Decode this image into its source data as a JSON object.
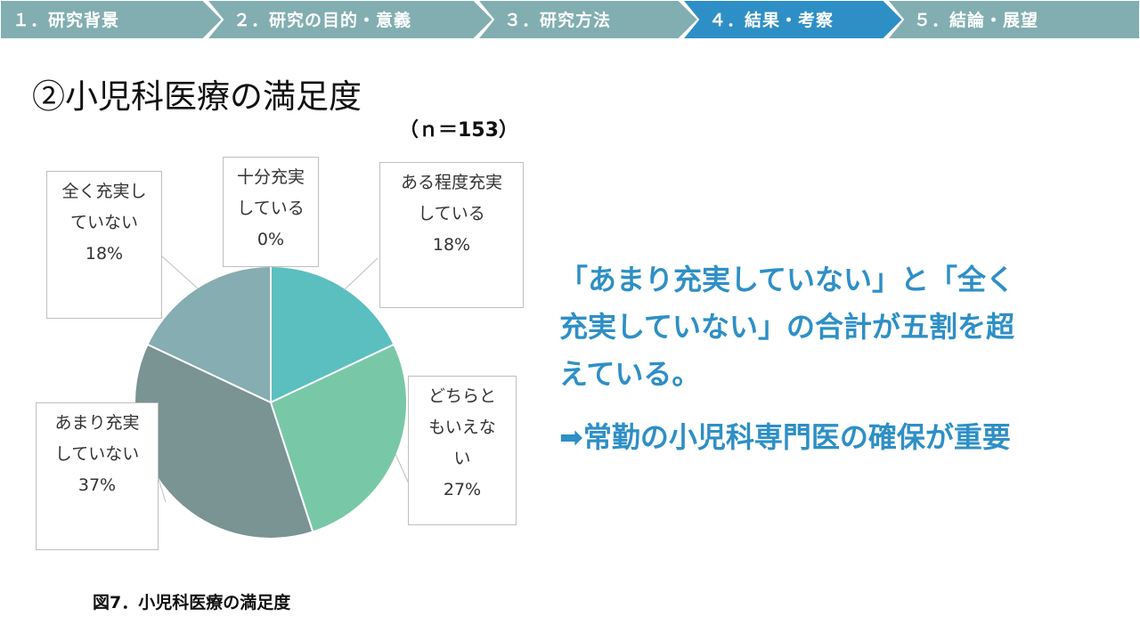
{
  "nav": {
    "steps": [
      {
        "label": "１．研究背景",
        "active": false
      },
      {
        "label": "２．研究の目的・意義",
        "active": false
      },
      {
        "label": "３．研究方法",
        "active": false
      },
      {
        "label": "４．結果・考察",
        "active": true
      },
      {
        "label": "５．結論・展望",
        "active": false
      }
    ],
    "colors": {
      "inactive": "#82aeb1",
      "active": "#2e8fc6"
    }
  },
  "slide_title": "②小児科医療の満足度",
  "sample_size": "（ｎ＝153）",
  "chart_data": {
    "type": "pie",
    "title": "",
    "slices": [
      {
        "label_lines": [
          "十分充実",
          "している"
        ],
        "value": 0,
        "percent_label": "0%",
        "color": "#5bbfbf"
      },
      {
        "label_lines": [
          "ある程度充実",
          "している"
        ],
        "value": 18,
        "percent_label": "18%",
        "color": "#5bbfbf"
      },
      {
        "label_lines": [
          "どちらと",
          "もいえな",
          "い"
        ],
        "value": 27,
        "percent_label": "27%",
        "color": "#78c8a8"
      },
      {
        "label_lines": [
          "あまり充実",
          "していない"
        ],
        "value": 37,
        "percent_label": "37%",
        "color": "#7a9393"
      },
      {
        "label_lines": [
          "全く充実し",
          "ていない"
        ],
        "value": 18,
        "percent_label": "18%",
        "color": "#86adb1"
      }
    ],
    "start_angle_deg": 0,
    "direction": "clockwise"
  },
  "figure_caption": "図7．小児科医療の満足度",
  "conclusion_lines": [
    "「あまり充実していない」と「全く",
    "充実していない」の合計が五割を超",
    "えている。"
  ],
  "recommendation": "➡常勤の小児科専門医の確保が重要"
}
